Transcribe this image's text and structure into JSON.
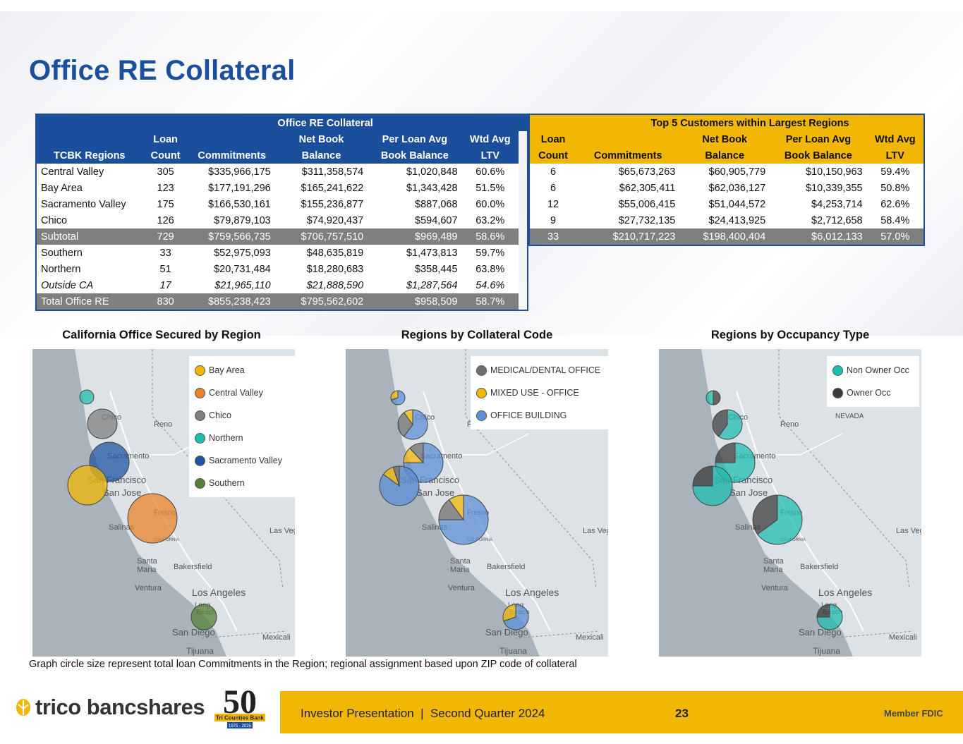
{
  "title": "Office RE Collateral",
  "table_left": {
    "group_header": "Office RE Collateral",
    "col_region": "TCBK Regions",
    "col_loan_1": "Loan",
    "col_loan_2": "Count",
    "col_commit": "Commitments",
    "col_nbb_1": "Net Book",
    "col_nbb_2": "Balance",
    "col_pla_1": "Per Loan Avg",
    "col_pla_2": "Book Balance",
    "col_ltv_1": "Wtd Avg",
    "col_ltv_2": "LTV",
    "rows": [
      {
        "region": "Central Valley",
        "count": "305",
        "commit": "$335,966,175",
        "nbb": "$311,358,574",
        "avg": "$1,020,848",
        "ltv": "60.6%"
      },
      {
        "region": "Bay Area",
        "count": "123",
        "commit": "$177,191,296",
        "nbb": "$165,241,622",
        "avg": "$1,343,428",
        "ltv": "51.5%"
      },
      {
        "region": "Sacramento Valley",
        "count": "175",
        "commit": "$166,530,161",
        "nbb": "$155,236,877",
        "avg": "$887,068",
        "ltv": "60.0%"
      },
      {
        "region": "Chico",
        "count": "126",
        "commit": "$79,879,103",
        "nbb": "$74,920,437",
        "avg": "$594,607",
        "ltv": "63.2%"
      },
      {
        "region": "Subtotal",
        "count": "729",
        "commit": "$759,566,735",
        "nbb": "$706,757,510",
        "avg": "$969,489",
        "ltv": "58.6%"
      },
      {
        "region": "Southern",
        "count": "33",
        "commit": "$52,975,093",
        "nbb": "$48,635,819",
        "avg": "$1,473,813",
        "ltv": "59.7%"
      },
      {
        "region": "Northern",
        "count": "51",
        "commit": "$20,731,484",
        "nbb": "$18,280,683",
        "avg": "$358,445",
        "ltv": "63.8%"
      },
      {
        "region": "Outside CA",
        "count": "17",
        "commit": "$21,965,110",
        "nbb": "$21,888,590",
        "avg": "$1,287,564",
        "ltv": "54.6%"
      },
      {
        "region": "Total Office RE",
        "count": "830",
        "commit": "$855,238,423",
        "nbb": "$795,562,602",
        "avg": "$958,509",
        "ltv": "58.7%"
      }
    ]
  },
  "table_right": {
    "group_header": "Top 5 Customers within Largest Regions",
    "col_loan_1": "Loan",
    "col_loan_2": "Count",
    "col_commit": "Commitments",
    "col_nbb_1": "Net Book",
    "col_nbb_2": "Balance",
    "col_pla_1": "Per Loan Avg",
    "col_pla_2": "Book Balance",
    "col_ltv_1": "Wtd Avg",
    "col_ltv_2": "LTV",
    "rows": [
      {
        "count": "6",
        "commit": "$65,673,263",
        "nbb": "$60,905,779",
        "avg": "$10,150,963",
        "ltv": "59.4%"
      },
      {
        "count": "6",
        "commit": "$62,305,411",
        "nbb": "$62,036,127",
        "avg": "$10,339,355",
        "ltv": "50.8%"
      },
      {
        "count": "12",
        "commit": "$55,006,415",
        "nbb": "$51,044,572",
        "avg": "$4,253,714",
        "ltv": "62.6%"
      },
      {
        "count": "9",
        "commit": "$27,732,135",
        "nbb": "$24,413,925",
        "avg": "$2,712,658",
        "ltv": "58.4%"
      },
      {
        "count": "33",
        "commit": "$210,717,223",
        "nbb": "$198,400,404",
        "avg": "$6,012,133",
        "ltv": "57.0%"
      }
    ]
  },
  "maps": {
    "map1_title": "California Office Secured by Region",
    "map2_title": "Regions by Collateral Code",
    "map3_title": "Regions by Occupancy Type",
    "legend1": [
      "Bay Area",
      "Central Valley",
      "Chico",
      "Northern",
      "Sacramento Valley",
      "Southern"
    ],
    "legend2": [
      "MEDICAL/DENTAL OFFICE",
      "MIXED USE - OFFICE",
      "OFFICE BUILDING"
    ],
    "legend3": [
      "Non Owner Occ",
      "Owner Occ"
    ],
    "places": {
      "chico": "Chico",
      "reno": "Reno",
      "sacramento": "Sacramento",
      "sf": "San Francisco",
      "sj": "San Jose",
      "fresno": "Fresno",
      "salinas": "Salinas",
      "california": "CALIFORNIA",
      "lasvegas": "Las Vegas",
      "santa": "Santa",
      "maria": "Maria",
      "bakersfield": "Bakersfield",
      "ventura": "Ventura",
      "la": "Los Angeles",
      "long": "Long",
      "beach": "Beach",
      "sd": "San Diego",
      "mexicali": "Mexicali",
      "tijuana": "Tijuana",
      "nevada": "NEVADA"
    },
    "colors": {
      "bay_area": "#f2b705",
      "central_valley": "#e8832a",
      "chico": "#7f7f7f",
      "northern": "#1fbdb0",
      "sacramento": "#1f56a3",
      "southern": "#548235",
      "medical": "#6f6f6f",
      "mixed": "#f2b705",
      "office": "#5b8fd6",
      "non_owner": "#1fbdb0",
      "owner": "#3b3b3b"
    }
  },
  "note": "Graph circle size represent total loan Commitments in the Region; regional assignment based upon ZIP code of collateral",
  "footer": {
    "company": "trico bancshares",
    "anniv_num": "50",
    "anniv_text": "Tri Counties Bank",
    "anniv_years": "1975 - 2025",
    "presentation": "Investor Presentation  |  Second Quarter 2024",
    "page": "23",
    "fdic": "Member FDIC"
  }
}
